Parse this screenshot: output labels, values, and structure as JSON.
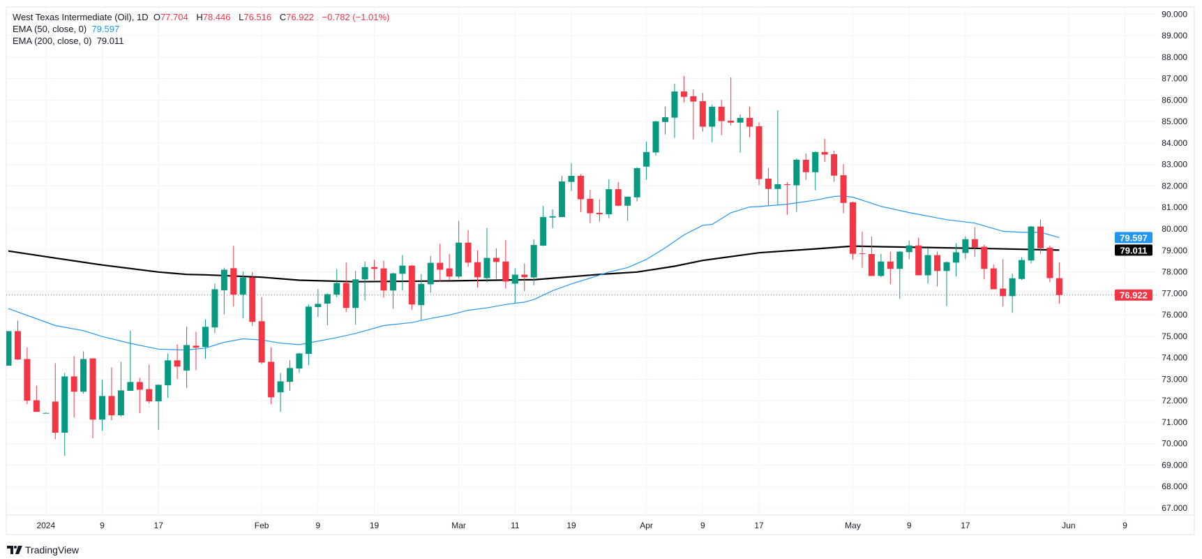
{
  "header": {
    "symbol": "West Texas Intermediate (Oil), 1D",
    "o_label": "O",
    "o_value": "77.704",
    "h_label": "H",
    "h_value": "78.446",
    "l_label": "L",
    "l_value": "76.516",
    "c_label": "C",
    "c_value": "76.922",
    "change": "−0.782 (−1.01%)",
    "ema50_label": "EMA (50, close, 0)",
    "ema50_value": "79.597",
    "ema200_label": "EMA (200, close, 0)",
    "ema200_value": "79.011"
  },
  "branding": {
    "logo_text": "TradingView"
  },
  "colors": {
    "up": "#089981",
    "down": "#f23645",
    "ema50": "#2196f3",
    "ema200": "#000000",
    "grid": "#f0f3fa"
  },
  "chart_data": {
    "type": "candlestick",
    "title": "West Texas Intermediate (Oil), 1D",
    "ylim": [
      67,
      90
    ],
    "y_ticks": [
      "67.000",
      "68.000",
      "69.000",
      "70.000",
      "71.000",
      "72.000",
      "73.000",
      "74.000",
      "75.000",
      "76.000",
      "77.000",
      "78.000",
      "79.000",
      "80.000",
      "81.000",
      "82.000",
      "83.000",
      "84.000",
      "85.000",
      "86.000",
      "87.000",
      "88.000",
      "89.000",
      "90.000"
    ],
    "x_ticks": [
      {
        "label": "2024",
        "bar": 4
      },
      {
        "label": "9",
        "bar": 10
      },
      {
        "label": "17",
        "bar": 16
      },
      {
        "label": "Feb",
        "bar": 27
      },
      {
        "label": "9",
        "bar": 33
      },
      {
        "label": "19",
        "bar": 39
      },
      {
        "label": "Mar",
        "bar": 48
      },
      {
        "label": "11",
        "bar": 54
      },
      {
        "label": "19",
        "bar": 60
      },
      {
        "label": "Apr",
        "bar": 68
      },
      {
        "label": "9",
        "bar": 74
      },
      {
        "label": "17",
        "bar": 80
      },
      {
        "label": "May",
        "bar": 90
      },
      {
        "label": "9",
        "bar": 96
      },
      {
        "label": "17",
        "bar": 102
      },
      {
        "label": "Jun",
        "bar": 113
      },
      {
        "label": "9",
        "bar": 119
      }
    ],
    "bars_visible": 125,
    "candles_ohlc": [
      [
        73.63,
        75.24,
        73.63,
        75.24
      ],
      [
        75.24,
        75.73,
        73.9,
        73.92
      ],
      [
        73.94,
        74.49,
        71.84,
        72.0
      ],
      [
        72.02,
        72.7,
        71.48,
        71.48
      ],
      [
        71.43,
        71.45,
        71.42,
        71.43
      ],
      [
        71.96,
        73.75,
        70.21,
        70.51
      ],
      [
        70.51,
        73.29,
        69.43,
        73.13
      ],
      [
        73.13,
        74.07,
        71.22,
        72.42
      ],
      [
        72.42,
        74.3,
        72.33,
        73.94
      ],
      [
        73.97,
        73.97,
        70.25,
        71.12
      ],
      [
        71.12,
        72.97,
        70.6,
        72.22
      ],
      [
        72.22,
        73.55,
        71.09,
        71.32
      ],
      [
        71.32,
        73.81,
        71.25,
        72.48
      ],
      [
        72.46,
        75.26,
        72.46,
        72.87
      ],
      [
        72.87,
        73.06,
        71.42,
        72.51
      ],
      [
        72.54,
        73.68,
        71.87,
        71.97
      ],
      [
        71.97,
        72.76,
        70.64,
        72.74
      ],
      [
        72.72,
        74.2,
        72.13,
        73.88
      ],
      [
        73.88,
        74.62,
        73.01,
        73.59
      ],
      [
        73.4,
        75.45,
        72.59,
        74.59
      ],
      [
        74.56,
        75.21,
        73.42,
        74.47
      ],
      [
        74.5,
        75.79,
        73.95,
        75.44
      ],
      [
        75.41,
        77.45,
        75.15,
        77.19
      ],
      [
        77.14,
        78.19,
        76.02,
        78.1
      ],
      [
        78.17,
        79.21,
        76.39,
        76.94
      ],
      [
        76.94,
        78.02,
        75.83,
        77.74
      ],
      [
        77.74,
        77.99,
        75.48,
        75.67
      ],
      [
        75.7,
        76.83,
        73.71,
        73.78
      ],
      [
        73.81,
        74.49,
        71.84,
        72.16
      ],
      [
        72.39,
        73.29,
        71.48,
        72.9
      ],
      [
        72.88,
        73.88,
        72.46,
        73.52
      ],
      [
        73.5,
        74.23,
        73.3,
        74.2
      ],
      [
        74.18,
        76.48,
        73.66,
        76.38
      ],
      [
        76.36,
        77.19,
        75.9,
        76.51
      ],
      [
        76.52,
        77.0,
        75.51,
        76.96
      ],
      [
        76.94,
        78.13,
        76.81,
        77.48
      ],
      [
        77.48,
        78.43,
        76.13,
        76.32
      ],
      [
        76.32,
        78.04,
        75.54,
        77.65
      ],
      [
        77.65,
        78.48,
        76.67,
        78.22
      ],
      [
        78.22,
        78.56,
        77.62,
        78.14
      ],
      [
        78.16,
        78.52,
        76.8,
        77.13
      ],
      [
        77.13,
        77.96,
        76.28,
        77.93
      ],
      [
        77.91,
        78.78,
        77.13,
        78.29
      ],
      [
        78.29,
        78.32,
        76.24,
        76.48
      ],
      [
        76.45,
        77.9,
        75.76,
        77.44
      ],
      [
        77.42,
        78.74,
        77.03,
        78.42
      ],
      [
        78.42,
        79.3,
        77.54,
        78.1
      ],
      [
        78.16,
        78.84,
        77.59,
        77.78
      ],
      [
        77.78,
        80.37,
        77.68,
        79.36
      ],
      [
        79.36,
        79.95,
        78.23,
        78.43
      ],
      [
        78.45,
        79.0,
        77.26,
        77.75
      ],
      [
        77.71,
        80.05,
        77.52,
        78.65
      ],
      [
        78.65,
        79.1,
        77.67,
        78.46
      ],
      [
        78.48,
        79.49,
        77.23,
        77.55
      ],
      [
        77.45,
        78.16,
        76.55,
        77.87
      ],
      [
        77.87,
        78.39,
        77.1,
        77.75
      ],
      [
        77.74,
        79.51,
        77.38,
        79.25
      ],
      [
        79.22,
        81.07,
        79.2,
        80.55
      ],
      [
        80.53,
        80.91,
        80.04,
        80.59
      ],
      [
        80.55,
        82.47,
        80.55,
        82.21
      ],
      [
        82.19,
        83.06,
        81.77,
        82.47
      ],
      [
        82.47,
        82.55,
        80.79,
        81.38
      ],
      [
        81.4,
        81.82,
        80.27,
        80.73
      ],
      [
        80.75,
        81.37,
        80.34,
        80.68
      ],
      [
        80.68,
        82.31,
        80.5,
        81.85
      ],
      [
        81.85,
        82.18,
        81.05,
        81.08
      ],
      [
        81.08,
        81.51,
        80.37,
        81.5
      ],
      [
        81.47,
        82.88,
        81.28,
        82.83
      ],
      [
        82.9,
        84.06,
        82.29,
        83.58
      ],
      [
        83.56,
        85.03,
        83.42,
        85.01
      ],
      [
        84.98,
        85.69,
        84.4,
        85.2
      ],
      [
        85.18,
        86.76,
        84.24,
        86.4
      ],
      [
        86.4,
        87.12,
        85.89,
        86.15
      ],
      [
        86.18,
        86.5,
        84.17,
        85.93
      ],
      [
        85.95,
        86.33,
        84.53,
        84.76
      ],
      [
        84.76,
        85.79,
        84.04,
        85.69
      ],
      [
        85.69,
        86.01,
        84.37,
        85.02
      ],
      [
        85.04,
        87.05,
        84.82,
        84.95
      ],
      [
        84.95,
        85.33,
        83.55,
        85.17
      ],
      [
        85.17,
        85.69,
        84.27,
        84.76
      ],
      [
        84.78,
        84.97,
        82.03,
        82.32
      ],
      [
        82.34,
        82.83,
        81.1,
        81.86
      ],
      [
        81.86,
        85.53,
        81.13,
        82.08
      ],
      [
        82.08,
        82.18,
        80.66,
        82.06
      ],
      [
        82.03,
        83.28,
        80.79,
        83.22
      ],
      [
        83.22,
        83.51,
        82.29,
        82.64
      ],
      [
        82.64,
        83.61,
        81.8,
        83.58
      ],
      [
        83.58,
        84.19,
        83.12,
        83.46
      ],
      [
        83.48,
        83.64,
        82.19,
        82.48
      ],
      [
        82.5,
        83.02,
        80.73,
        81.21
      ],
      [
        81.24,
        81.27,
        78.58,
        78.84
      ],
      [
        78.86,
        79.88,
        78.19,
        78.84
      ],
      [
        78.83,
        79.64,
        77.8,
        77.81
      ],
      [
        77.81,
        78.84,
        77.75,
        78.48
      ],
      [
        78.48,
        78.94,
        77.42,
        78.14
      ],
      [
        78.14,
        78.97,
        76.74,
        78.94
      ],
      [
        78.92,
        79.46,
        78.59,
        79.23
      ],
      [
        79.23,
        79.59,
        77.84,
        77.84
      ],
      [
        77.84,
        79.11,
        77.45,
        78.78
      ],
      [
        78.78,
        78.94,
        77.32,
        78.04
      ],
      [
        78.04,
        78.48,
        76.41,
        78.45
      ],
      [
        78.43,
        79.33,
        77.78,
        78.91
      ],
      [
        78.88,
        79.65,
        78.59,
        79.52
      ],
      [
        79.52,
        80.08,
        78.69,
        79.14
      ],
      [
        79.17,
        79.26,
        77.65,
        78.14
      ],
      [
        78.16,
        78.34,
        77.19,
        77.19
      ],
      [
        77.22,
        78.59,
        76.38,
        76.87
      ],
      [
        76.87,
        77.93,
        76.09,
        77.7
      ],
      [
        77.67,
        78.68,
        77.62,
        78.55
      ],
      [
        78.53,
        80.14,
        78.39,
        80.11
      ],
      [
        80.11,
        80.43,
        78.85,
        79.1
      ],
      [
        79.13,
        79.22,
        77.52,
        77.71
      ],
      [
        77.704,
        78.446,
        76.516,
        76.922
      ]
    ],
    "ema50": [
      [
        0,
        76.29
      ],
      [
        5,
        75.5
      ],
      [
        8,
        75.26
      ],
      [
        10,
        74.99
      ],
      [
        13,
        74.67
      ],
      [
        16,
        74.4
      ],
      [
        19,
        74.36
      ],
      [
        21,
        74.45
      ],
      [
        23,
        74.72
      ],
      [
        25,
        74.88
      ],
      [
        27,
        74.83
      ],
      [
        29,
        74.68
      ],
      [
        31,
        74.61
      ],
      [
        33,
        74.77
      ],
      [
        35,
        74.94
      ],
      [
        37,
        75.13
      ],
      [
        40,
        75.5
      ],
      [
        43,
        75.64
      ],
      [
        45,
        75.83
      ],
      [
        47,
        75.99
      ],
      [
        49,
        76.21
      ],
      [
        51,
        76.32
      ],
      [
        53,
        76.48
      ],
      [
        55,
        76.59
      ],
      [
        56,
        76.71
      ],
      [
        58,
        77.12
      ],
      [
        60,
        77.44
      ],
      [
        62,
        77.71
      ],
      [
        64,
        77.99
      ],
      [
        66,
        78.2
      ],
      [
        68,
        78.58
      ],
      [
        70,
        79.12
      ],
      [
        72,
        79.72
      ],
      [
        74,
        80.17
      ],
      [
        75,
        80.21
      ],
      [
        77,
        80.75
      ],
      [
        79,
        81.02
      ],
      [
        80,
        81.04
      ],
      [
        83,
        81.15
      ],
      [
        86,
        81.34
      ],
      [
        88,
        81.51
      ],
      [
        89,
        81.53
      ],
      [
        90,
        81.48
      ],
      [
        93,
        81.05
      ],
      [
        96,
        80.76
      ],
      [
        100,
        80.43
      ],
      [
        103,
        80.27
      ],
      [
        106,
        79.89
      ],
      [
        108,
        79.84
      ],
      [
        110,
        79.84
      ],
      [
        112,
        79.597
      ]
    ],
    "ema200": [
      [
        0,
        78.97
      ],
      [
        5,
        78.64
      ],
      [
        10,
        78.32
      ],
      [
        16,
        77.99
      ],
      [
        19,
        77.88
      ],
      [
        21,
        77.86
      ],
      [
        27,
        77.75
      ],
      [
        31,
        77.61
      ],
      [
        37,
        77.54
      ],
      [
        47,
        77.58
      ],
      [
        55,
        77.63
      ],
      [
        56,
        77.63
      ],
      [
        63,
        77.88
      ],
      [
        67,
        77.99
      ],
      [
        71,
        78.26
      ],
      [
        74,
        78.53
      ],
      [
        80,
        78.89
      ],
      [
        86,
        79.07
      ],
      [
        90,
        79.2
      ],
      [
        93,
        79.17
      ],
      [
        100,
        79.12
      ],
      [
        105,
        79.08
      ],
      [
        112,
        79.011
      ]
    ],
    "last_price": 76.922,
    "last_price_label": "76.922",
    "ema50_label": "79.597",
    "ema200_label": "79.011"
  }
}
